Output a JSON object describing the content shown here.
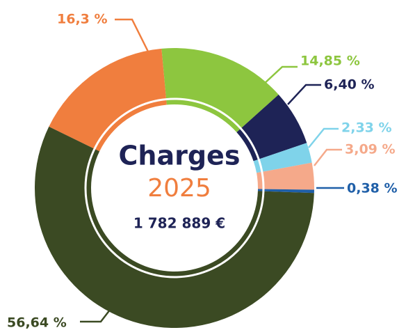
{
  "chart_data": {
    "type": "pie",
    "title": "Charges",
    "subtitle": "2025",
    "total": "1 782 889 €",
    "values": [
      16.3,
      14.85,
      6.4,
      2.33,
      3.09,
      0.38,
      56.64
    ],
    "value_labels": [
      "16,3 %",
      "14,85 %",
      "6,40 %",
      "2,33 %",
      "3,09 %",
      "0,38 %",
      "56,64 %"
    ],
    "colors": [
      "#f07e3e",
      "#8dc63f",
      "#1e2356",
      "#7fd3ea",
      "#f5a98a",
      "#1f5fa8",
      "#3b4a23"
    ]
  }
}
